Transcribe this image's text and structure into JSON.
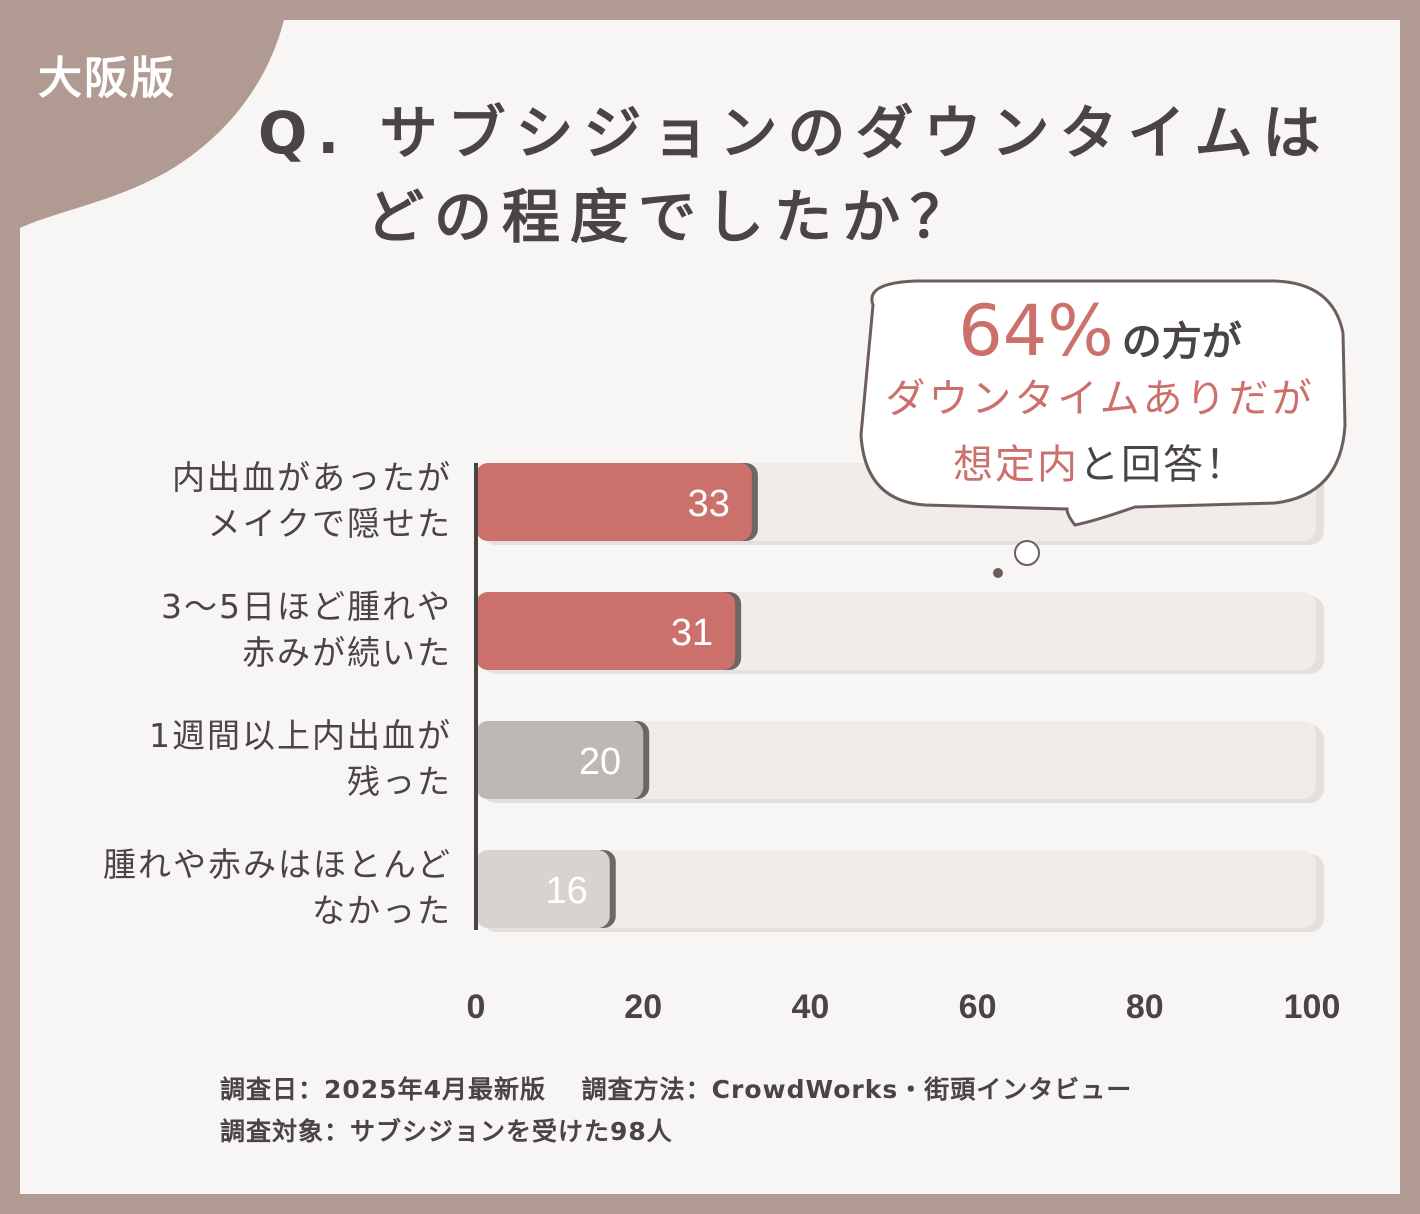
{
  "badge": "大阪版",
  "title": {
    "line1": "Q. サブシジョンのダウンタイムは",
    "line2": "どの程度でしたか？"
  },
  "callout": {
    "percent": "64%",
    "line1_suffix": "の方が",
    "line2": "ダウンタイムありだが",
    "line3_accent": "想定内",
    "line3_rest": "と回答！"
  },
  "chart_data": {
    "type": "bar",
    "orientation": "horizontal",
    "categories": [
      [
        "内出血があったが",
        "メイクで隠せた"
      ],
      [
        "3〜5日ほど腫れや",
        "赤みが続いた"
      ],
      [
        "1週間以上内出血が",
        "残った"
      ],
      [
        "腫れや赤みはほとんど",
        "なかった"
      ]
    ],
    "values": [
      33,
      31,
      20,
      16
    ],
    "bar_colors": [
      "#cc706c",
      "#cc706c",
      "#bdb8b6",
      "#d6d3d1"
    ],
    "xlim": [
      0,
      100
    ],
    "x_ticks": [
      "0",
      "20",
      "40",
      "60",
      "80",
      "100"
    ],
    "grid": false
  },
  "footer": {
    "line1": "調査日：2025年4月最新版　 調査方法：CrowdWorks・街頭インタビュー",
    "line2": "調査対象：サブシジョンを受けた98人"
  },
  "colors": {
    "frame": "#b09a92",
    "accent": "#cc706c",
    "text": "#4a4444"
  }
}
